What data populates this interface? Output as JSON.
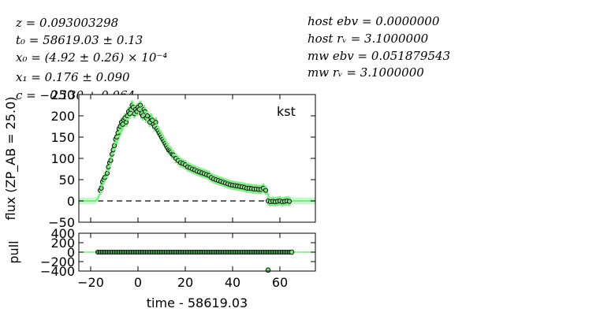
{
  "params_left": [
    "z = 0.093003298",
    "t₀ = 58619.03 ± 0.13",
    "x₀ = (4.92 ± 0.26) × 10⁻⁴",
    "x₁ = 0.176 ± 0.090",
    "c = −0.130 ± 0.064"
  ],
  "params_right": [
    "host ebv = 0.0000000",
    "host rᵥ = 3.1000000",
    "mw ebv = 0.051879543",
    "mw rᵥ = 3.1000000"
  ],
  "chart_data": [
    {
      "type": "scatter",
      "band_label": "kst",
      "ylabel": "flux (ZP_AB = 25.0)",
      "xlim": [
        -25,
        75
      ],
      "ylim": [
        -50,
        250
      ],
      "xticks": [
        -20,
        0,
        20,
        40,
        60
      ],
      "yticks": [
        -50,
        0,
        50,
        100,
        150,
        200,
        250
      ],
      "tick_labels": [
        "−50",
        "0",
        "50",
        "100",
        "150",
        "200",
        "250"
      ],
      "model": {
        "x": [
          -25,
          -18,
          -17,
          -16,
          -15,
          -14,
          -12,
          -10,
          -8,
          -6,
          -4,
          -2,
          0,
          2,
          4,
          6,
          8,
          10,
          12,
          14,
          16,
          18,
          20,
          24,
          28,
          32,
          36,
          40,
          44,
          48,
          52,
          54,
          55,
          56,
          58,
          60,
          75
        ],
        "y": [
          0,
          0,
          5,
          20,
          40,
          60,
          90,
          120,
          150,
          175,
          195,
          207,
          211,
          207,
          198,
          185,
          170,
          150,
          130,
          115,
          105,
          95,
          86,
          72,
          62,
          53,
          46,
          40,
          35,
          31,
          28,
          26,
          15,
          0,
          0,
          0,
          0
        ]
      },
      "observations": {
        "x": [
          -16,
          -15.5,
          -15,
          -14.5,
          -14,
          -13,
          -12.5,
          -12,
          -11.5,
          -11,
          -10.5,
          -10,
          -9.5,
          -9,
          -8.5,
          -8,
          -7.5,
          -7,
          -6.5,
          -6,
          -5.5,
          -5,
          -4.5,
          -4,
          -3.5,
          -3,
          -2.5,
          -2,
          -1.5,
          -1,
          -0.5,
          0,
          0.5,
          1,
          1.5,
          2,
          2.5,
          3,
          3.5,
          4,
          5,
          5.5,
          6,
          6.5,
          7,
          7.5,
          8,
          8.5,
          9,
          9.5,
          10,
          10.5,
          11,
          11.5,
          12,
          12.5,
          13,
          13.5,
          14,
          14.5,
          15,
          16,
          17,
          18,
          19,
          20,
          21,
          22,
          23,
          24,
          25,
          26,
          27,
          28,
          29,
          30,
          31,
          32,
          33,
          34,
          35,
          36,
          37,
          38,
          39,
          40,
          41,
          42,
          43,
          44,
          45,
          46,
          47,
          48,
          49,
          50,
          51,
          52,
          53,
          54,
          55,
          56,
          57,
          58,
          59,
          60,
          61,
          62,
          63,
          64
        ],
        "y": [
          25,
          30,
          45,
          50,
          55,
          65,
          80,
          90,
          95,
          110,
          120,
          130,
          145,
          150,
          160,
          170,
          175,
          185,
          180,
          190,
          195,
          185,
          200,
          210,
          205,
          215,
          225,
          220,
          205,
          215,
          210,
          220,
          215,
          225,
          205,
          200,
          215,
          210,
          195,
          200,
          185,
          195,
          190,
          180,
          175,
          185,
          170,
          165,
          160,
          155,
          150,
          145,
          140,
          135,
          130,
          125,
          120,
          118,
          115,
          110,
          108,
          100,
          95,
          90,
          88,
          85,
          80,
          78,
          75,
          73,
          70,
          68,
          66,
          64,
          62,
          60,
          55,
          52,
          50,
          48,
          46,
          44,
          42,
          40,
          38,
          37,
          36,
          35,
          34,
          33,
          32,
          30,
          30,
          29,
          28,
          28,
          27,
          27,
          30,
          25,
          0,
          -2,
          -1,
          -2,
          -1,
          0,
          -2,
          -1,
          0,
          -1
        ]
      }
    },
    {
      "type": "scatter",
      "xlabel": "time - 58619.03",
      "ylabel": "pull",
      "xlim": [
        -25,
        75
      ],
      "ylim": [
        -400,
        400
      ],
      "xticks": [
        -20,
        0,
        20,
        40,
        60
      ],
      "tick_labels_x": [
        "−20",
        "0",
        "20",
        "40",
        "60"
      ],
      "yticks": [
        -400,
        -200,
        0,
        200,
        400
      ],
      "tick_labels_y": [
        "−400",
        "−200",
        "0",
        "200",
        "400"
      ],
      "outlier": {
        "x": 55,
        "y": -380
      },
      "end_point": {
        "x": 65,
        "y": 0
      }
    }
  ]
}
